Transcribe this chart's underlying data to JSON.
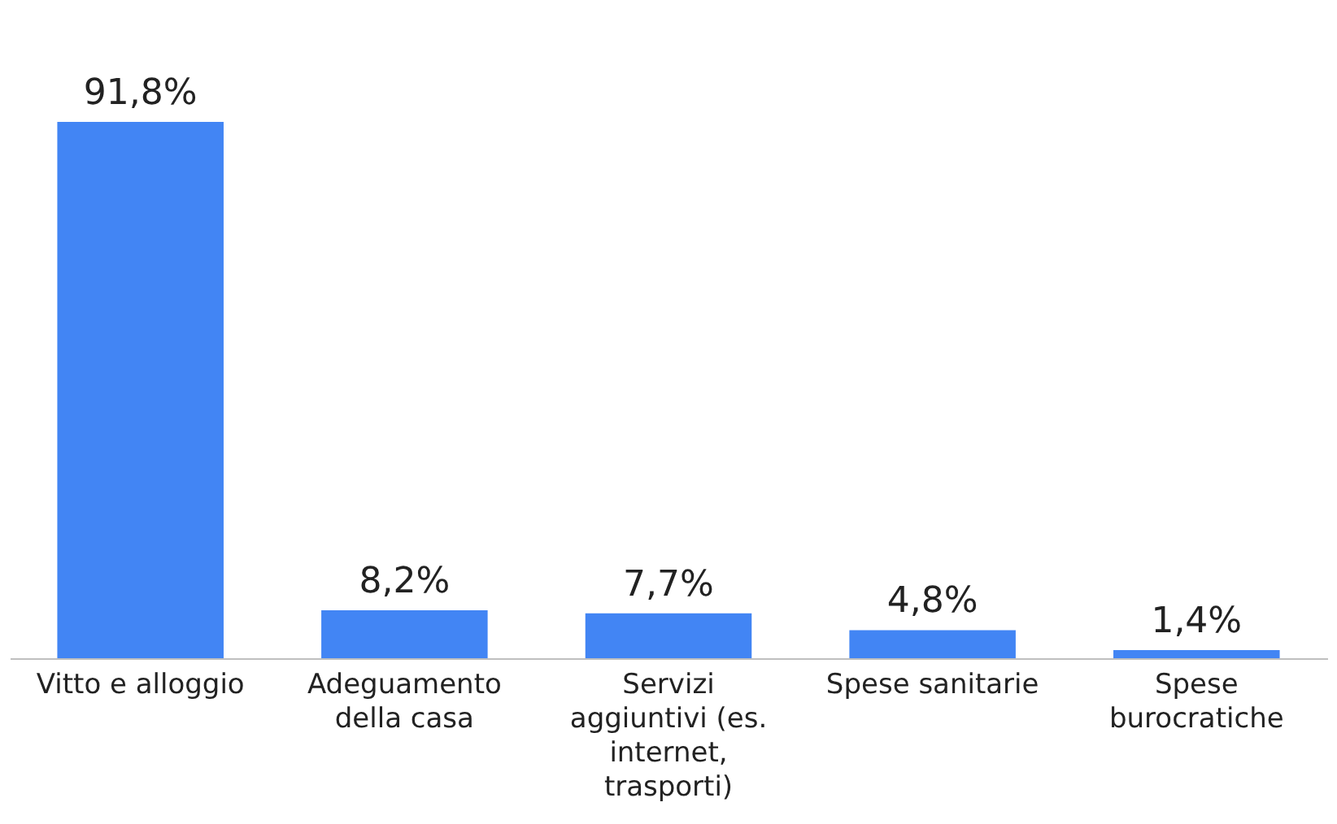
{
  "chart_data": {
    "type": "bar",
    "categories": [
      "Vitto e alloggio",
      "Adeguamento della casa",
      "Servizi aggiuntivi (es. internet, trasporti)",
      "Spese sanitarie",
      "Spese burocratiche"
    ],
    "values": [
      91.8,
      8.2,
      7.7,
      4.8,
      1.4
    ],
    "value_labels": [
      "91,8%",
      "8,2%",
      "7,7%",
      "4,8%",
      "1,4%"
    ],
    "color": "#4285f4"
  }
}
